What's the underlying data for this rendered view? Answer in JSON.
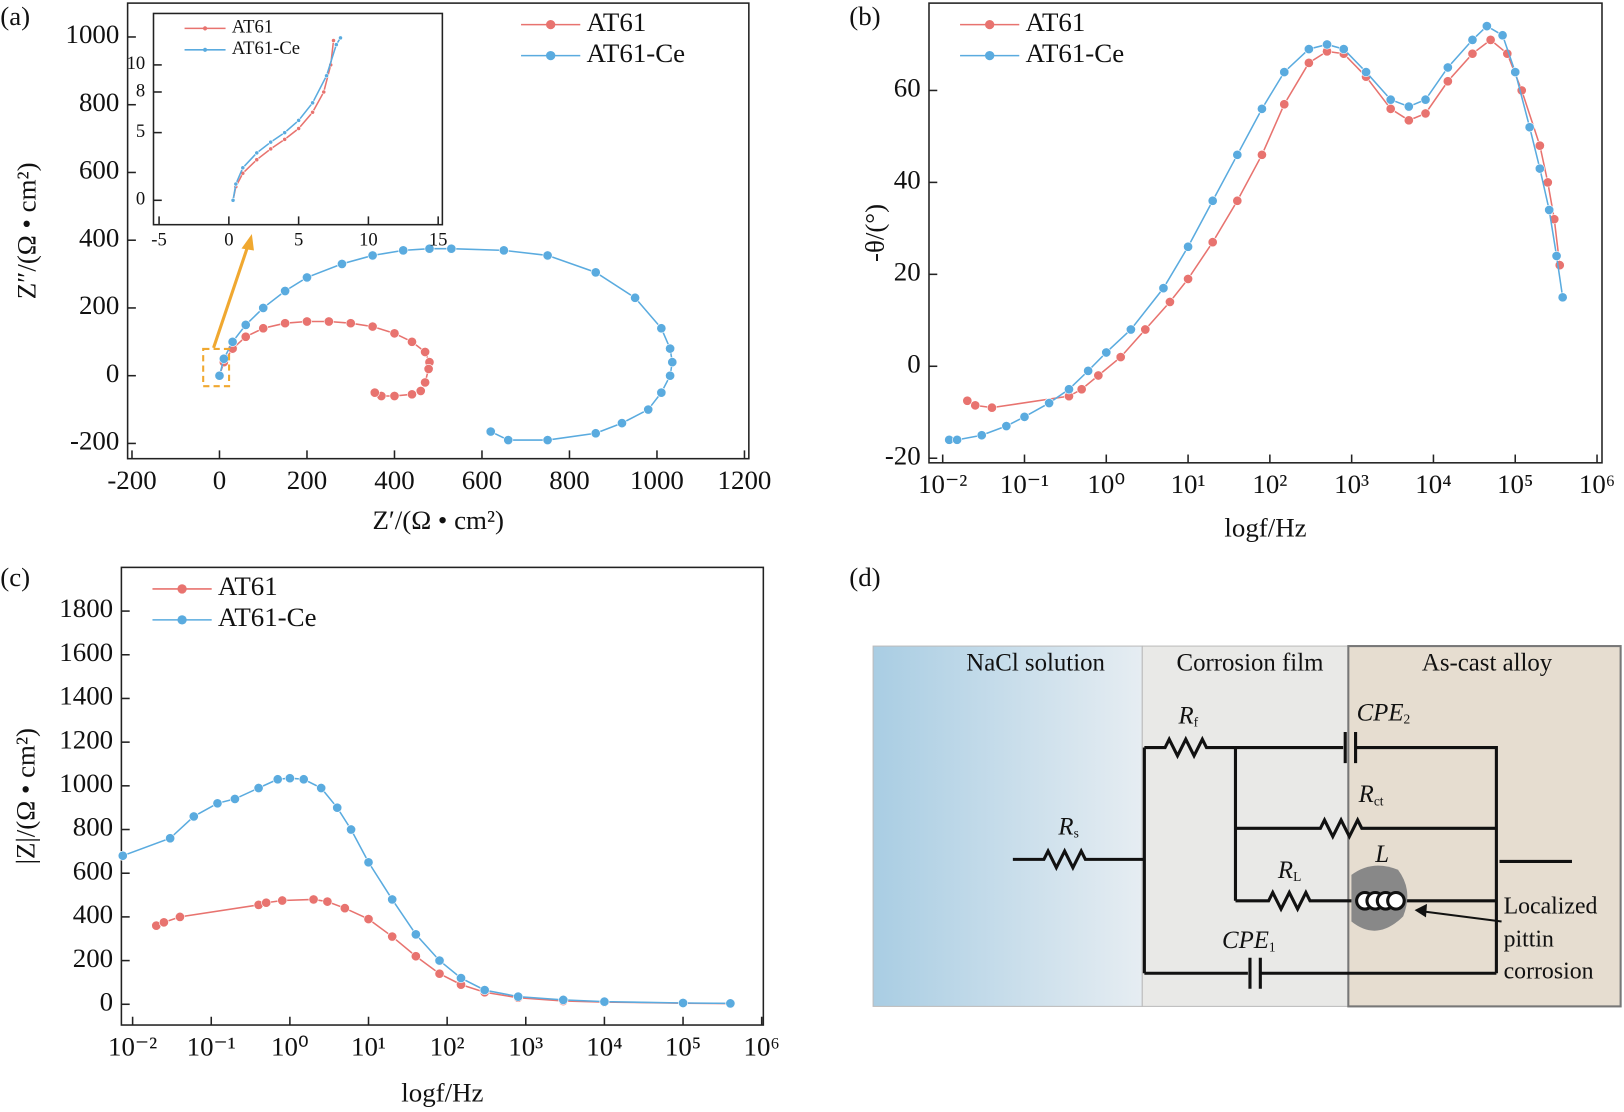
{
  "chart_data": [
    {
      "type": "line",
      "panel_label": "(a)",
      "x_label": "Z′/(Ω • cm²)",
      "y_label": "Z″/(Ω • cm²)",
      "xlim": [
        -210,
        1210
      ],
      "ylim": [
        -245,
        1100
      ],
      "xticks": [
        -200,
        0,
        200,
        400,
        600,
        800,
        1000,
        1200
      ],
      "yticks": [
        -200,
        0,
        200,
        400,
        600,
        800,
        1000
      ],
      "legend": "upper right",
      "series": [
        {
          "name": "AT61",
          "color": "#e8736f",
          "x": [
            0,
            10,
            30,
            60,
            100,
            150,
            200,
            250,
            300,
            350,
            400,
            440,
            470,
            480,
            478,
            470,
            460,
            440,
            400,
            370,
            355
          ],
          "values": [
            0,
            40,
            80,
            115,
            140,
            155,
            160,
            160,
            155,
            145,
            125,
            100,
            70,
            40,
            20,
            -20,
            -45,
            -55,
            -60,
            -60,
            -50
          ]
        },
        {
          "name": "AT61-Ce",
          "color": "#5aabdf",
          "x": [
            0,
            10,
            30,
            60,
            100,
            150,
            200,
            280,
            350,
            420,
            480,
            530,
            650,
            750,
            860,
            950,
            1010,
            1030,
            1035,
            1030,
            1010,
            980,
            920,
            860,
            750,
            660,
            620
          ],
          "values": [
            0,
            50,
            100,
            150,
            200,
            250,
            290,
            330,
            355,
            370,
            375,
            375,
            370,
            355,
            305,
            230,
            140,
            80,
            40,
            0,
            -50,
            -100,
            -140,
            -170,
            -190,
            -190,
            -165
          ]
        }
      ]
    },
    {
      "type": "line",
      "xlim": [
        -5.4,
        15.3
      ],
      "ylim": [
        -1.8,
        13.8
      ],
      "xticks": [
        -5,
        0,
        5,
        10,
        15
      ],
      "yticks": [
        0,
        5,
        8,
        10
      ],
      "legend": "upper left",
      "series": [
        {
          "name": "AT61",
          "color": "#e8736f",
          "x": [
            0.3,
            0.5,
            1,
            2,
            3,
            4,
            5,
            6,
            6.8,
            7.3,
            7.5
          ],
          "values": [
            0,
            1,
            2,
            3,
            3.8,
            4.5,
            5.3,
            6.5,
            8,
            10,
            11.8
          ]
        },
        {
          "name": "AT61-Ce",
          "color": "#5aabdf",
          "x": [
            0.3,
            0.5,
            1,
            2,
            3,
            4,
            5,
            6,
            7,
            7.7,
            8
          ],
          "values": [
            0,
            1.2,
            2.4,
            3.5,
            4.3,
            5,
            5.9,
            7.2,
            9.2,
            11.5,
            12
          ]
        }
      ]
    },
    {
      "type": "line",
      "panel_label": "(b)",
      "x_label": "logf/Hz",
      "y_label": "-θ/(°)",
      "xscale": "log",
      "xlim": [
        0.0068,
        1150000
      ],
      "ylim": [
        -21,
        79
      ],
      "xticks": [
        {
          "value": 0.01,
          "label": "10⁻²"
        },
        {
          "value": 0.1,
          "label": "10⁻¹"
        },
        {
          "value": 1,
          "label": "10⁰"
        },
        {
          "value": 10,
          "label": "10¹"
        },
        {
          "value": 100,
          "label": "10²"
        },
        {
          "value": 1000,
          "label": "10³"
        },
        {
          "value": 10000,
          "label": "10⁴"
        },
        {
          "value": 100000,
          "label": "10⁵"
        },
        {
          "value": 1000000,
          "label": "10⁶"
        }
      ],
      "yticks": [
        -20,
        0,
        20,
        40,
        60
      ],
      "legend": "upper left",
      "series": [
        {
          "name": "AT61",
          "color": "#e8736f",
          "x": [
            0.02,
            0.025,
            0.04,
            0.35,
            0.5,
            0.8,
            1.5,
            3,
            6,
            10,
            20,
            40,
            80,
            150,
            300,
            500,
            800,
            1500,
            3000,
            5000,
            8000,
            15000,
            30000,
            50000,
            80000,
            120000,
            200000,
            250000,
            300000,
            350000
          ],
          "values": [
            -7.5,
            -8.5,
            -9,
            -6.5,
            -5,
            -2,
            2,
            8,
            14,
            19,
            27,
            36,
            46,
            57,
            66,
            68.5,
            68,
            63,
            56,
            53.5,
            55,
            62,
            68,
            71,
            68,
            60,
            48,
            40,
            32,
            22
          ]
        },
        {
          "name": "AT61-Ce",
          "color": "#5aabdf",
          "x": [
            0.012,
            0.015,
            0.03,
            0.06,
            0.1,
            0.2,
            0.35,
            0.6,
            1,
            2,
            5,
            10,
            20,
            40,
            80,
            150,
            300,
            500,
            800,
            1500,
            3000,
            5000,
            8000,
            15000,
            30000,
            45000,
            70000,
            100000,
            150000,
            200000,
            260000,
            320000,
            380000
          ],
          "values": [
            -16,
            -16,
            -15,
            -13,
            -11,
            -8,
            -5,
            -1,
            3,
            8,
            17,
            26,
            36,
            46,
            56,
            64,
            69,
            70,
            69,
            64,
            58,
            56.5,
            58,
            65,
            71,
            74,
            72,
            64,
            52,
            43,
            34,
            24,
            15
          ]
        }
      ]
    },
    {
      "type": "line",
      "panel_label": "(c)",
      "x_label": "logf/Hz",
      "y_label": "|Z|/(Ω • cm²)",
      "xscale": "log",
      "xlim": [
        0.0072,
        1050000
      ],
      "ylim": [
        -95,
        2000
      ],
      "xticks": [
        {
          "value": 0.01,
          "label": "10⁻²"
        },
        {
          "value": 0.1,
          "label": "10⁻¹"
        },
        {
          "value": 1,
          "label": "10⁰"
        },
        {
          "value": 10,
          "label": "10¹"
        },
        {
          "value": 100,
          "label": "10²"
        },
        {
          "value": 1000,
          "label": "10³"
        },
        {
          "value": 10000,
          "label": "10⁴"
        },
        {
          "value": 100000,
          "label": "10⁵"
        },
        {
          "value": 1000000,
          "label": "10⁶"
        }
      ],
      "yticks": [
        0,
        200,
        400,
        600,
        800,
        1000,
        1200,
        1400,
        1600,
        1800
      ],
      "legend": "upper left",
      "series": [
        {
          "name": "AT61",
          "color": "#e8736f",
          "x": [
            0.02,
            0.025,
            0.04,
            0.4,
            0.5,
            0.8,
            2,
            3,
            5,
            10,
            20,
            40,
            80,
            150,
            300,
            800,
            3000,
            10000,
            100000,
            400000
          ],
          "values": [
            360,
            375,
            400,
            455,
            465,
            475,
            480,
            470,
            440,
            390,
            310,
            220,
            140,
            90,
            55,
            30,
            15,
            10,
            5,
            3
          ]
        },
        {
          "name": "AT61-Ce",
          "color": "#5aabdf",
          "x": [
            0.0075,
            0.03,
            0.06,
            0.12,
            0.2,
            0.4,
            0.7,
            1,
            1.5,
            2.5,
            4,
            6,
            10,
            20,
            40,
            80,
            150,
            300,
            800,
            3000,
            10000,
            100000,
            400000
          ],
          "values": [
            680,
            760,
            860,
            920,
            940,
            990,
            1030,
            1035,
            1030,
            990,
            900,
            800,
            650,
            480,
            320,
            200,
            120,
            65,
            35,
            20,
            12,
            6,
            4
          ]
        }
      ]
    }
  ],
  "diagram": {
    "panel_label": "(d)",
    "regions": [
      "NaCl solution",
      "Corrosion film",
      "As-cast alloy"
    ],
    "components": [
      {
        "symbol": "R",
        "sub": "s"
      },
      {
        "symbol": "R",
        "sub": "f"
      },
      {
        "symbol": "CPE",
        "sub": "2"
      },
      {
        "symbol": "R",
        "sub": "ct"
      },
      {
        "symbol": "R",
        "sub": "L"
      },
      {
        "symbol": "L"
      },
      {
        "symbol": "CPE",
        "sub": "1"
      }
    ],
    "annotation": [
      "Localized",
      "pittin",
      "corrosion"
    ]
  }
}
